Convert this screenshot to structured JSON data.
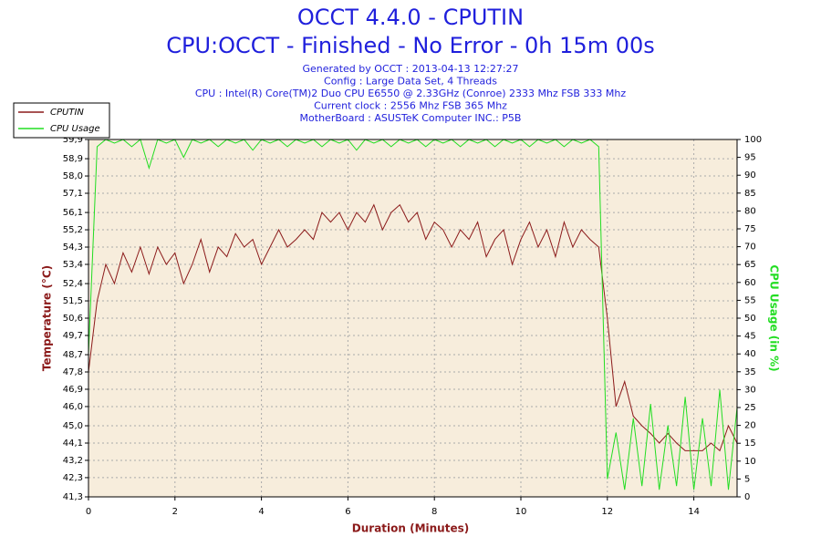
{
  "chart_data": {
    "type": "line",
    "title": "OCCT 4.4.0 - CPUTIN",
    "subtitle": "CPU:OCCT - Finished - No Error - 0h 15m 00s",
    "info_lines": [
      "Generated by OCCT : 2013-04-13 12:27:27",
      "Config : Large Data Set, 4 Threads",
      "CPU : Intel(R) Core(TM)2 Duo CPU E6550 @ 2.33GHz (Conroe) 2333 Mhz FSB 333 Mhz",
      "Current clock : 2556 Mhz FSB 365 Mhz",
      "MotherBoard : ASUSTeK Computer INC.: P5B"
    ],
    "x_label": "Duration (Minutes)",
    "y_label": "Temperature (°C)",
    "y2_label": "CPU Usage (in %)",
    "legend": "top-left",
    "grid": true,
    "xlim": [
      0,
      15
    ],
    "xticks": [
      0,
      2,
      4,
      6,
      8,
      10,
      12,
      14
    ],
    "ylim": [
      41.3,
      59.9
    ],
    "yticks": [
      {
        "value": 41.3,
        "label": "41,3"
      },
      {
        "value": 42.3,
        "label": "42,3"
      },
      {
        "value": 43.2,
        "label": "43,2"
      },
      {
        "value": 44.1,
        "label": "44,1"
      },
      {
        "value": 45.0,
        "label": "45,0"
      },
      {
        "value": 46.0,
        "label": "46,0"
      },
      {
        "value": 46.9,
        "label": "46,9"
      },
      {
        "value": 47.8,
        "label": "47,8"
      },
      {
        "value": 48.7,
        "label": "48,7"
      },
      {
        "value": 49.7,
        "label": "49,7"
      },
      {
        "value": 50.6,
        "label": "50,6"
      },
      {
        "value": 51.5,
        "label": "51,5"
      },
      {
        "value": 52.4,
        "label": "52,4"
      },
      {
        "value": 53.4,
        "label": "53,4"
      },
      {
        "value": 54.3,
        "label": "54,3"
      },
      {
        "value": 55.2,
        "label": "55,2"
      },
      {
        "value": 56.1,
        "label": "56,1"
      },
      {
        "value": 57.1,
        "label": "57,1"
      },
      {
        "value": 58.0,
        "label": "58,0"
      },
      {
        "value": 58.9,
        "label": "58,9"
      },
      {
        "value": 59.9,
        "label": "59,9"
      }
    ],
    "y2lim": [
      0,
      100
    ],
    "y2ticks": [
      0,
      5,
      10,
      15,
      20,
      25,
      30,
      35,
      40,
      45,
      50,
      55,
      60,
      65,
      70,
      75,
      80,
      85,
      90,
      95,
      100
    ],
    "x": [
      0,
      0.2,
      0.4,
      0.6,
      0.8,
      1.0,
      1.2,
      1.4,
      1.6,
      1.8,
      2.0,
      2.2,
      2.4,
      2.6,
      2.8,
      3.0,
      3.2,
      3.4,
      3.6,
      3.8,
      4.0,
      4.2,
      4.4,
      4.6,
      4.8,
      5.0,
      5.2,
      5.4,
      5.6,
      5.8,
      6.0,
      6.2,
      6.4,
      6.6,
      6.8,
      7.0,
      7.2,
      7.4,
      7.6,
      7.8,
      8.0,
      8.2,
      8.4,
      8.6,
      8.8,
      9.0,
      9.2,
      9.4,
      9.6,
      9.8,
      10.0,
      10.2,
      10.4,
      10.6,
      10.8,
      11.0,
      11.2,
      11.4,
      11.6,
      11.8,
      12.0,
      12.2,
      12.4,
      12.6,
      12.8,
      13.0,
      13.2,
      13.4,
      13.6,
      13.8,
      14.0,
      14.2,
      14.4,
      14.6,
      14.8,
      15.0
    ],
    "series": [
      {
        "name": "CPUTIN",
        "color": "#8b1a1a",
        "values": [
          47.8,
          51.5,
          53.4,
          52.4,
          54.0,
          53.0,
          54.3,
          52.9,
          54.3,
          53.4,
          54.0,
          52.4,
          53.4,
          54.7,
          53.0,
          54.3,
          53.8,
          55.0,
          54.3,
          54.7,
          53.4,
          54.3,
          55.2,
          54.3,
          54.7,
          55.2,
          54.7,
          56.1,
          55.6,
          56.1,
          55.2,
          56.1,
          55.6,
          56.5,
          55.2,
          56.1,
          56.5,
          55.6,
          56.1,
          54.7,
          55.6,
          55.2,
          54.3,
          55.2,
          54.7,
          55.6,
          53.8,
          54.7,
          55.2,
          53.4,
          54.7,
          55.6,
          54.3,
          55.2,
          53.8,
          55.6,
          54.3,
          55.2,
          54.7,
          54.3,
          50.6,
          46.0,
          47.3,
          45.5,
          45.0,
          44.6,
          44.1,
          44.6,
          44.1,
          43.7,
          43.7,
          43.7,
          44.1,
          43.7,
          45.0,
          44.1
        ]
      },
      {
        "name": "CPU Usage",
        "color": "#22dd22",
        "axis": "y2",
        "values": [
          40,
          98,
          100,
          99,
          100,
          98,
          100,
          92,
          100,
          99,
          100,
          95,
          100,
          99,
          100,
          98,
          100,
          99,
          100,
          97,
          100,
          99,
          100,
          98,
          100,
          99,
          100,
          98,
          100,
          99,
          100,
          97,
          100,
          99,
          100,
          98,
          100,
          99,
          100,
          98,
          100,
          99,
          100,
          98,
          100,
          99,
          100,
          98,
          100,
          99,
          100,
          98,
          100,
          99,
          100,
          98,
          100,
          99,
          100,
          98,
          5,
          18,
          2,
          22,
          3,
          26,
          2,
          20,
          3,
          28,
          2,
          22,
          3,
          30,
          2,
          25
        ]
      }
    ]
  }
}
